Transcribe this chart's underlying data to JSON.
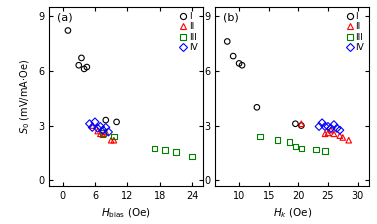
{
  "panel_a": {
    "label": "(a)",
    "xlabel_latex": "$H_{\\rm bias}$ (Oe)",
    "xlim": [
      -2.5,
      26
    ],
    "xticks": [
      0,
      6,
      12,
      18,
      24
    ],
    "series": {
      "I": {
        "color": "black",
        "marker": "o",
        "x": [
          1.0,
          3.0,
          3.5,
          4.0,
          4.5,
          8.0,
          10.0
        ],
        "y": [
          8.2,
          6.3,
          6.7,
          6.1,
          6.2,
          3.3,
          3.2
        ]
      },
      "II": {
        "color": "red",
        "marker": "^",
        "x": [
          5.5,
          6.5,
          7.0,
          7.5,
          8.0,
          9.0,
          9.5
        ],
        "y": [
          3.0,
          2.7,
          2.55,
          2.5,
          2.65,
          2.2,
          2.2
        ]
      },
      "III": {
        "color": "green",
        "marker": "s",
        "x": [
          7.5,
          9.5,
          17.0,
          19.0,
          21.0,
          24.0
        ],
        "y": [
          2.6,
          2.4,
          1.75,
          1.65,
          1.55,
          1.3
        ]
      },
      "IV": {
        "color": "blue",
        "marker": "D",
        "x": [
          5.0,
          5.5,
          6.0,
          6.5,
          7.0,
          7.5,
          8.0,
          8.5
        ],
        "y": [
          3.1,
          2.9,
          3.2,
          2.85,
          2.95,
          2.75,
          2.9,
          2.65
        ]
      }
    }
  },
  "panel_b": {
    "label": "(b)",
    "xlabel_latex": "$H_k$ (Oe)",
    "xlim": [
      6,
      32
    ],
    "xticks": [
      10,
      15,
      20,
      25,
      30
    ],
    "series": {
      "I": {
        "color": "black",
        "marker": "o",
        "x": [
          8.0,
          9.0,
          10.0,
          10.5,
          13.0,
          19.5,
          20.5
        ],
        "y": [
          7.6,
          6.8,
          6.4,
          6.3,
          4.0,
          3.1,
          3.0
        ]
      },
      "II": {
        "color": "red",
        "marker": "^",
        "x": [
          20.5,
          24.5,
          25.0,
          25.5,
          26.0,
          27.0,
          27.5,
          28.5
        ],
        "y": [
          3.1,
          2.55,
          2.6,
          2.75,
          2.55,
          2.45,
          2.35,
          2.2
        ]
      },
      "III": {
        "color": "green",
        "marker": "s",
        "x": [
          13.5,
          16.5,
          18.5,
          19.5,
          20.5,
          23.0,
          24.5
        ],
        "y": [
          2.4,
          2.2,
          2.1,
          1.85,
          1.75,
          1.7,
          1.6
        ]
      },
      "IV": {
        "color": "blue",
        "marker": "D",
        "x": [
          23.5,
          24.0,
          24.5,
          25.0,
          25.5,
          26.0,
          26.5,
          27.0
        ],
        "y": [
          2.95,
          3.15,
          2.95,
          2.95,
          2.85,
          3.05,
          2.85,
          2.75
        ]
      }
    }
  },
  "ylabel_latex": "$S_0$ (mV/mA$\\cdot$Oe)",
  "ylim": [
    -0.3,
    9.5
  ],
  "yticks": [
    0,
    3,
    6,
    9
  ],
  "legend_order": [
    "I",
    "II",
    "III",
    "IV"
  ],
  "marker_size": 4,
  "linewidth": 0.8,
  "background_color": "#ffffff"
}
